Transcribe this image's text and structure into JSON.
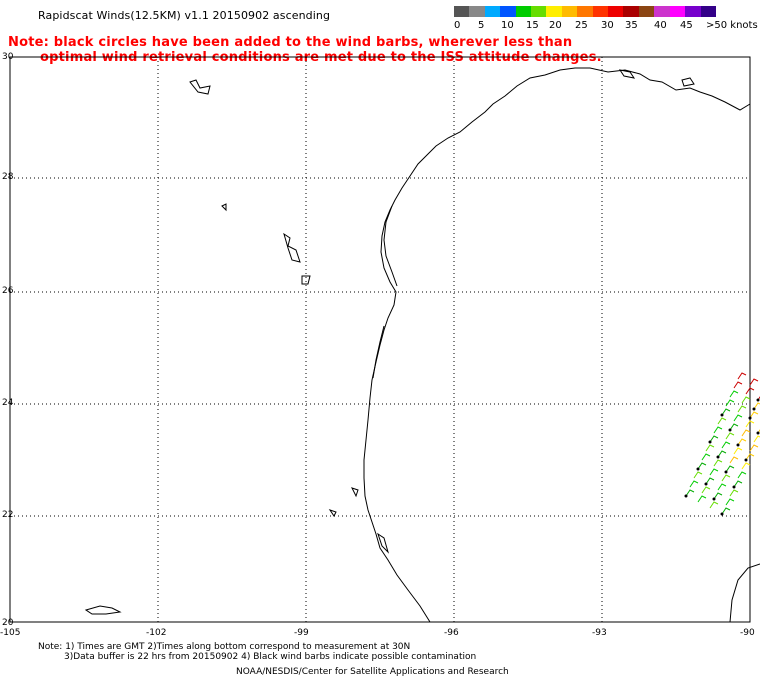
{
  "header": {
    "title": "Rapidscat Winds(12.5KM) v1.1 20150902 ascending",
    "note_line1": "Note: black circles have been added to the wind barbs, wherever less than",
    "note_line2": "optimal wind retrieval conditions are met due to the ISS attitude changes."
  },
  "colorbar": {
    "colors": [
      "#555555",
      "#888888",
      "#00aaff",
      "#0055ff",
      "#00cc00",
      "#66dd00",
      "#ffee00",
      "#ffbb00",
      "#ff7700",
      "#ff3300",
      "#ee0000",
      "#aa0000",
      "#8b4513",
      "#cc33cc",
      "#ff00ff",
      "#7700cc",
      "#330088"
    ],
    "labels": [
      "0",
      "5",
      "10",
      "15",
      "20",
      "25",
      "30",
      "35",
      "40",
      "45",
      ">50 knots"
    ]
  },
  "axes": {
    "lon_labels": [
      "-105",
      "-102",
      "-99",
      "-96",
      "-93",
      "-90"
    ],
    "lat_labels": [
      "30",
      "28",
      "26",
      "24",
      "22",
      "20"
    ]
  },
  "footer": {
    "line1": "Note: 1) Times are GMT 2)Times along bottom correspond to measurement at 30N",
    "line2": "3)Data buffer is 22 hrs from 20150902 4) Black wind barbs indicate possible contamination",
    "line3": "NOAA/NESDIS/Center for Satellite Applications and Research"
  }
}
